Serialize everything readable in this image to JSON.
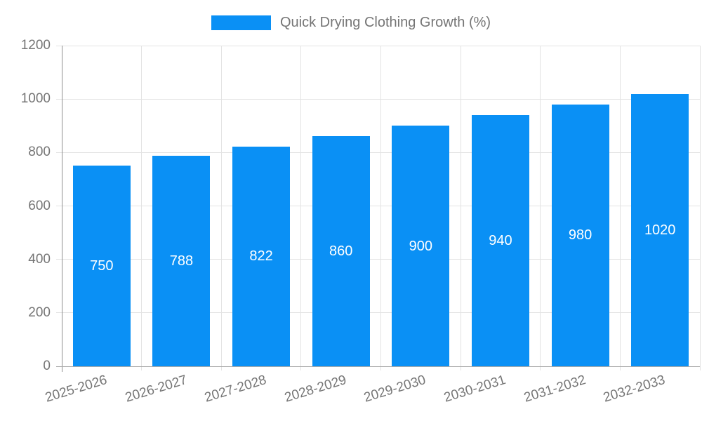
{
  "legend": {
    "items": [
      {
        "label": "Quick Drying Clothing Growth (%)",
        "color": "#0a90f5"
      }
    ]
  },
  "chart_data": {
    "type": "bar",
    "title": "Quick Drying Clothing Growth (%)",
    "categories": [
      "2025-2026",
      "2026-2027",
      "2027-2028",
      "2028-2029",
      "2029-2030",
      "2030-2031",
      "2031-2032",
      "2032-2033"
    ],
    "values": [
      750,
      788,
      822,
      860,
      900,
      940,
      980,
      1020
    ],
    "value_labels": [
      "750",
      "788",
      "822",
      "860",
      "900",
      "940",
      "980",
      "1020"
    ],
    "xlabel": "",
    "ylabel": "",
    "ylim": [
      0,
      1200
    ],
    "yticks": [
      0,
      200,
      400,
      600,
      800,
      1000,
      1200
    ],
    "grid": true,
    "legend_position": "top-center",
    "colors": {
      "bar": "#0a90f5",
      "value_label": "#ffffff",
      "tick_label": "#757575",
      "gridline": "#e3e3e3",
      "axis_line": "#8e8e8e",
      "baseline": "#aaaaaa",
      "background": "#ffffff"
    }
  }
}
